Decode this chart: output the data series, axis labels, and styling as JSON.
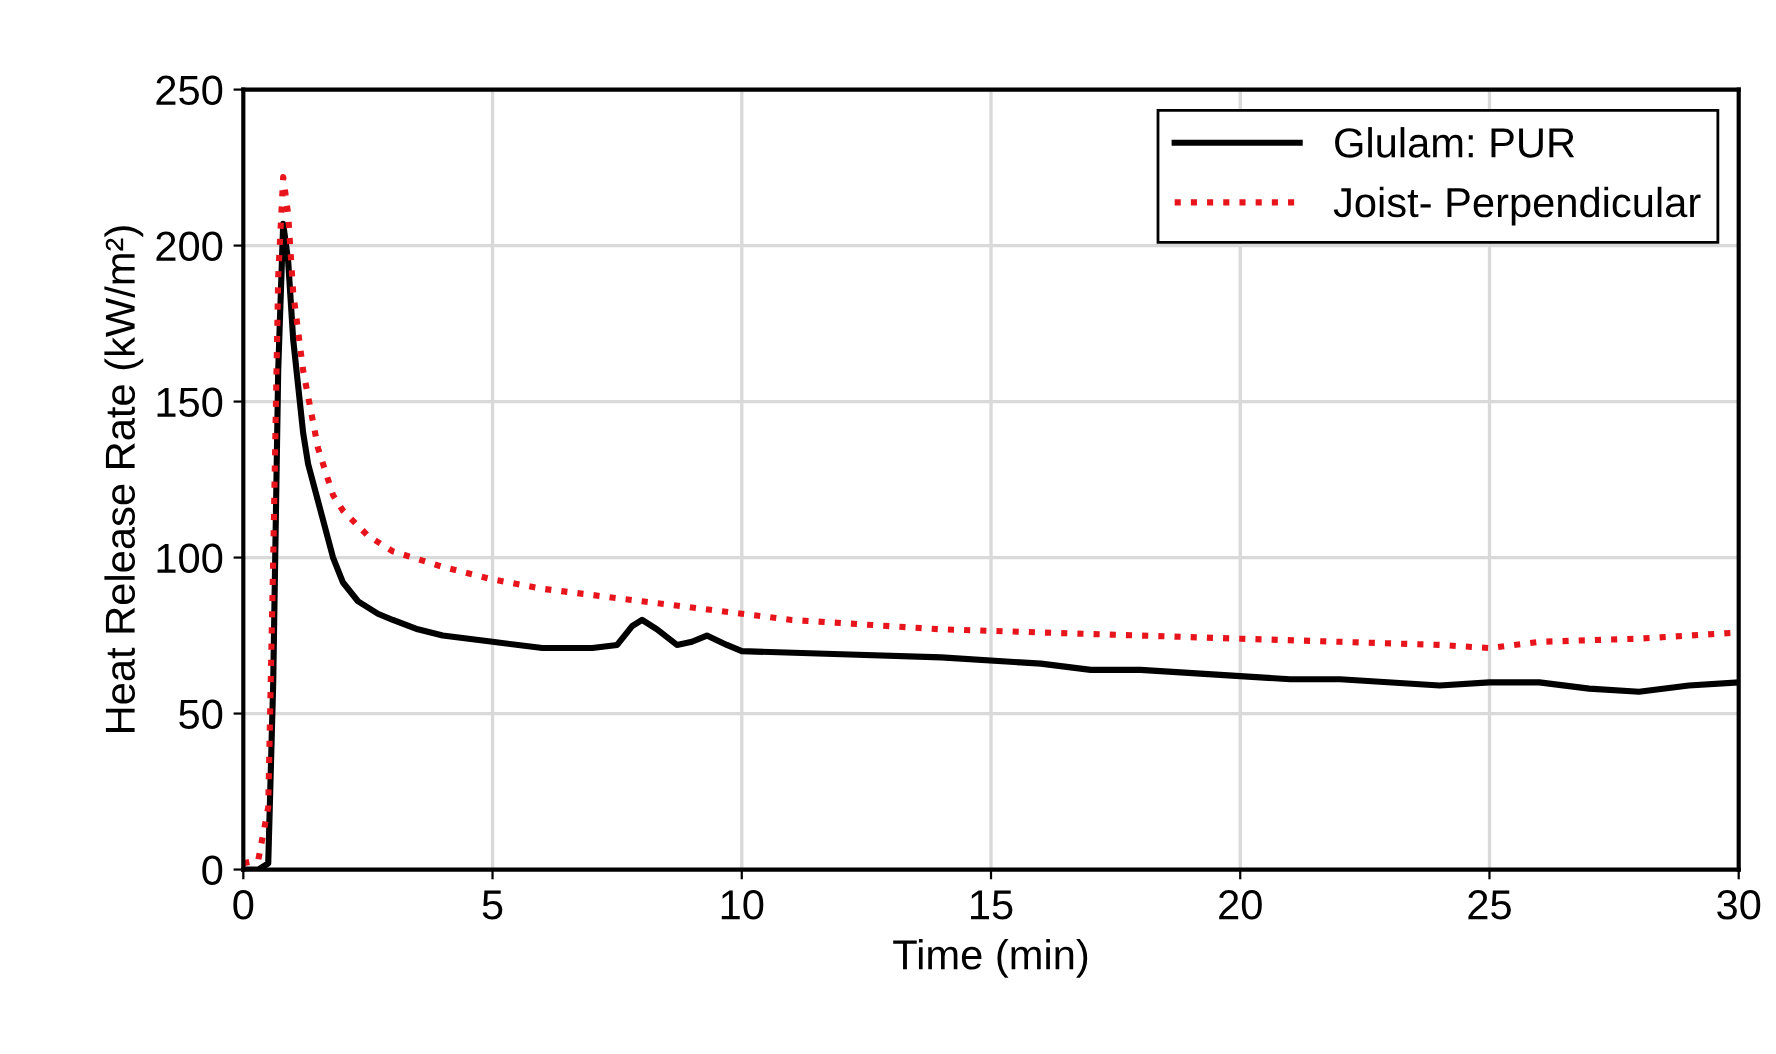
{
  "chart_data": {
    "type": "line",
    "xlabel": "Time (min)",
    "ylabel": "Heat Release Rate (kW/m²)",
    "xlim": [
      0,
      30
    ],
    "xticks": [
      0,
      5,
      10,
      15,
      20,
      25,
      30
    ],
    "ylim": [
      0,
      250
    ],
    "yticks": [
      0,
      50,
      100,
      150,
      200,
      250
    ],
    "grid": true,
    "legend": "top right",
    "series": [
      {
        "name": "Glulam: PUR",
        "color": "#000000",
        "line_style": "solid",
        "x": [
          0,
          0.3,
          0.5,
          0.6,
          0.7,
          0.8,
          0.9,
          1.0,
          1.2,
          1.3,
          1.5,
          1.8,
          2.0,
          2.3,
          2.7,
          3,
          3.5,
          4,
          5,
          6,
          7,
          7.5,
          7.8,
          8,
          8.3,
          8.7,
          9,
          9.3,
          9.7,
          10,
          12,
          14,
          16,
          17,
          18,
          20,
          21,
          22,
          24,
          25,
          26,
          27,
          28,
          29,
          30
        ],
        "values": [
          0,
          0,
          2,
          60,
          160,
          207,
          195,
          170,
          140,
          130,
          118,
          100,
          92,
          86,
          82,
          80,
          77,
          75,
          73,
          71,
          71,
          72,
          78,
          80,
          77,
          72,
          73,
          75,
          72,
          70,
          69,
          68,
          66,
          64,
          64,
          62,
          61,
          61,
          59,
          60,
          60,
          58,
          57,
          59,
          60
        ]
      },
      {
        "name": "Joist- Perpendicular",
        "color": "#e8141c",
        "line_style": "dotted",
        "x": [
          0,
          0.3,
          0.5,
          0.6,
          0.7,
          0.8,
          0.9,
          1,
          1.2,
          1.5,
          1.8,
          2,
          2.5,
          3,
          4,
          5,
          6,
          7,
          8,
          9,
          10,
          11,
          12,
          14,
          16,
          18,
          20,
          22,
          24,
          25,
          26,
          28,
          30
        ],
        "values": [
          2,
          3,
          20,
          100,
          190,
          222,
          210,
          185,
          160,
          135,
          120,
          115,
          107,
          102,
          97,
          93,
          90,
          88,
          86,
          84,
          82,
          80,
          79,
          77,
          76,
          75,
          74,
          73,
          72,
          71,
          73,
          74,
          76
        ]
      }
    ]
  }
}
